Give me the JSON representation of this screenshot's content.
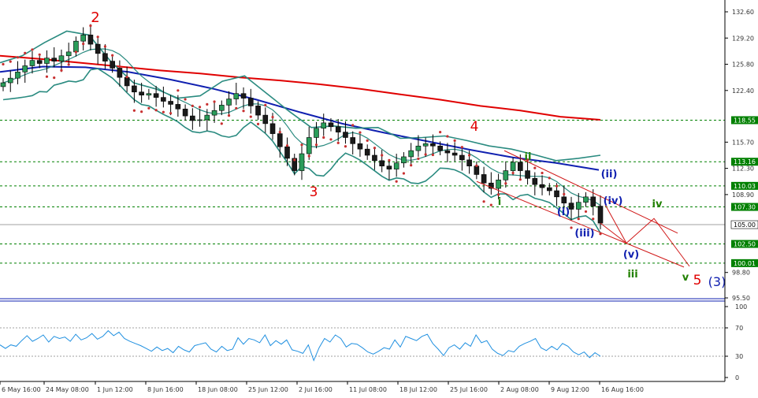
{
  "chart_data": [
    {
      "type": "candlestick",
      "title": "",
      "x_ticks": [
        "6 May 16:00",
        "24 May 08:00",
        "1 Jun 12:00",
        "8 Jun 16:00",
        "18 Jun 08:00",
        "25 Jun 12:00",
        "2 Jul 16:00",
        "11 Jul 08:00",
        "18 Jul 12:00",
        "25 Jul 16:00",
        "2 Aug 08:00",
        "9 Aug 12:00",
        "16 Aug 16:00"
      ],
      "y_ticks": [
        "132.60",
        "129.20",
        "125.80",
        "122.40",
        "115.70",
        "112.30",
        "108.90",
        "98.80",
        "95.50"
      ],
      "ylim": [
        95.5,
        132.6
      ],
      "grid": false,
      "current_price": "105.00",
      "horizontal_levels": [
        {
          "value": 118.55,
          "label": "118.55",
          "color": "#008000"
        },
        {
          "value": 113.16,
          "label": "113.16",
          "color": "#008000"
        },
        {
          "value": 110.03,
          "label": "110.03",
          "color": "#008000"
        },
        {
          "value": 107.3,
          "label": "107.30",
          "color": "#008000"
        },
        {
          "value": 102.5,
          "label": "102.50",
          "color": "#008000"
        },
        {
          "value": 100.01,
          "label": "100.01",
          "color": "#008000"
        }
      ],
      "approx_close_series": [
        123.4,
        124.0,
        124.8,
        125.6,
        126.3,
        125.9,
        126.6,
        126.2,
        126.9,
        127.4,
        128.8,
        129.6,
        128.4,
        127.2,
        126.2,
        125.3,
        124.1,
        123.0,
        122.2,
        121.8,
        122.0,
        121.5,
        121.0,
        120.6,
        120.0,
        119.1,
        118.5,
        118.6,
        119.2,
        119.8,
        120.5,
        121.3,
        122.0,
        121.4,
        120.4,
        119.2,
        118.1,
        116.8,
        115.1,
        113.6,
        112.0,
        114.2,
        116.3,
        117.5,
        118.2,
        117.7,
        117.0,
        116.3,
        115.5,
        114.8,
        114.0,
        113.3,
        112.6,
        112.2,
        113.0,
        113.8,
        114.6,
        115.2,
        115.5,
        115.2,
        114.6,
        114.3,
        114.0,
        113.4,
        112.6,
        111.5,
        110.4,
        109.7,
        110.8,
        112.0,
        113.1,
        112.0,
        111.0,
        110.2,
        109.8,
        109.4,
        108.6,
        107.8,
        107.0,
        107.9,
        108.6,
        107.4,
        105.2
      ],
      "series": [
        {
          "name": "",
          "type": "ma",
          "color": "#e00000",
          "values": [
            126.9,
            126.5,
            126.0,
            125.5,
            125.0,
            124.6,
            124.1,
            123.7,
            123.2,
            122.6,
            121.9,
            121.2,
            120.4,
            119.8,
            119.0,
            118.6
          ]
        },
        {
          "name": "",
          "type": "ma",
          "color": "#1020b0",
          "values": [
            124.8,
            125.5,
            125.4,
            124.8,
            123.8,
            122.6,
            121.2,
            119.6,
            118.1,
            116.9,
            115.8,
            114.7,
            113.7,
            113.0,
            112.1
          ]
        },
        {
          "name": "",
          "type": "bollinger",
          "color": "#2a8b80",
          "values": [
            126.0,
            126.9,
            128.6,
            130.1,
            129.6,
            126.1,
            123.4,
            122.6,
            121.4,
            121.7,
            123.6,
            124.3,
            122.0,
            119.7,
            117.6,
            117.8,
            117.5,
            117.6,
            116.2,
            116.3,
            116.5,
            115.9,
            115.2,
            114.8,
            114.1,
            113.3,
            113.6,
            114.0
          ]
        }
      ],
      "wave_labels": [
        {
          "text": "2",
          "color": "#e00000"
        },
        {
          "text": "3",
          "color": "#e00000"
        },
        {
          "text": "4",
          "color": "#e00000"
        },
        {
          "text": "5",
          "color": "#e00000"
        },
        {
          "text": "(3)",
          "color": "#1020b0"
        },
        {
          "text": "i",
          "color": "#208000"
        },
        {
          "text": "ii",
          "color": "#208000"
        },
        {
          "text": "iii",
          "color": "#208000"
        },
        {
          "text": "iv",
          "color": "#208000"
        },
        {
          "text": "v",
          "color": "#208000"
        },
        {
          "text": "(i)",
          "color": "#1020b0"
        },
        {
          "text": "(ii)",
          "color": "#1020b0"
        },
        {
          "text": "(iii)",
          "color": "#1020b0"
        },
        {
          "text": "(iv)",
          "color": "#1020b0"
        },
        {
          "text": "(v)",
          "color": "#1020b0"
        }
      ]
    },
    {
      "type": "line",
      "title": "",
      "y_ticks": [
        "100",
        "70",
        "30",
        "0"
      ],
      "ylim": [
        0,
        100
      ],
      "levels": [
        70,
        30
      ],
      "series": [
        {
          "name": "",
          "color": "#2090e0",
          "values": [
            46,
            41,
            46,
            44,
            52,
            59,
            51,
            55,
            60,
            50,
            58,
            55,
            57,
            51,
            61,
            53,
            56,
            62,
            54,
            58,
            66,
            59,
            64,
            55,
            51,
            48,
            45,
            41,
            37,
            43,
            38,
            41,
            35,
            44,
            39,
            36,
            45,
            47,
            49,
            40,
            36,
            44,
            38,
            40,
            56,
            47,
            55,
            53,
            49,
            60,
            45,
            52,
            47,
            53,
            39,
            37,
            34,
            46,
            24,
            42,
            55,
            50,
            60,
            55,
            43,
            48,
            47,
            42,
            36,
            33,
            37,
            42,
            40,
            53,
            43,
            58,
            55,
            52,
            58,
            61,
            48,
            40,
            31,
            42,
            46,
            40,
            49,
            44,
            60,
            49,
            52,
            40,
            34,
            31,
            38,
            36,
            44,
            48,
            51,
            55,
            42,
            38,
            44,
            39,
            48,
            44,
            36,
            32,
            36,
            28,
            35,
            30
          ]
        }
      ]
    }
  ]
}
